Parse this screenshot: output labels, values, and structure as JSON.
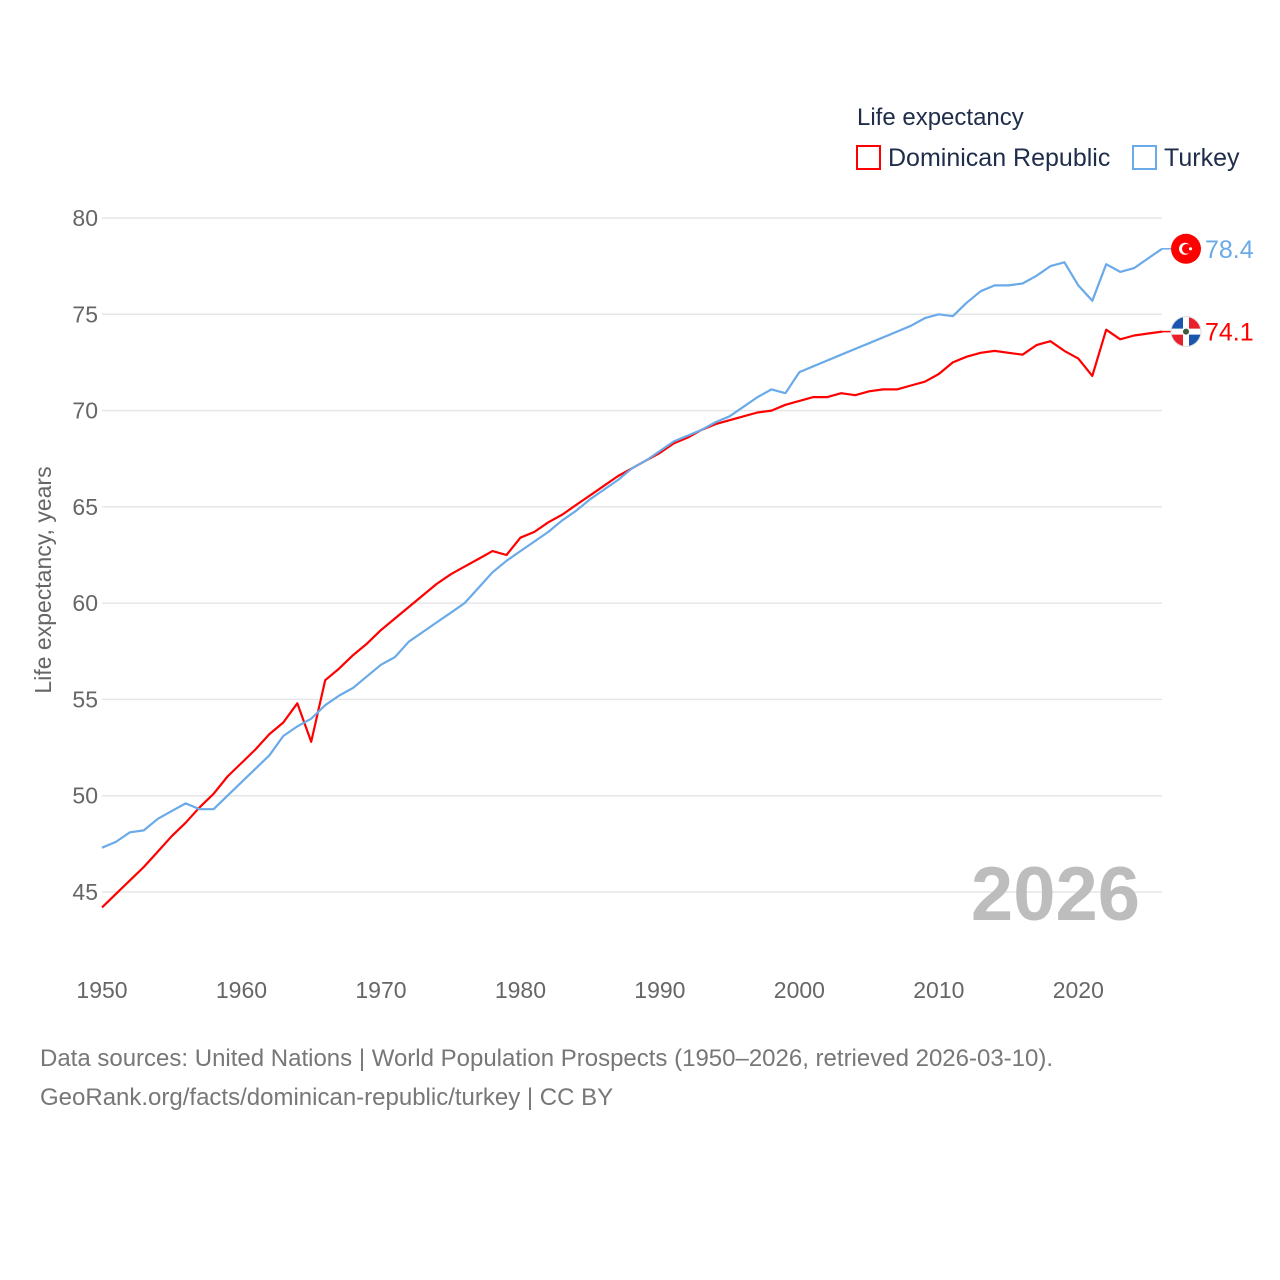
{
  "chart_data": {
    "type": "line",
    "title": "Life expectancy",
    "xlabel": "",
    "ylabel": "Life expectancy, years",
    "xlim": [
      1950,
      2026
    ],
    "ylim": [
      45,
      80
    ],
    "grid": true,
    "legend_placement": "top-right",
    "x_ticks": [
      "1950",
      "1960",
      "1970",
      "1980",
      "1990",
      "2000",
      "2010",
      "2020"
    ],
    "y_ticks": [
      "45",
      "50",
      "55",
      "60",
      "65",
      "70",
      "75",
      "80"
    ],
    "year_watermark": "2026",
    "x": [
      1950,
      1951,
      1952,
      1953,
      1954,
      1955,
      1956,
      1957,
      1958,
      1959,
      1960,
      1961,
      1962,
      1963,
      1964,
      1965,
      1966,
      1967,
      1968,
      1969,
      1970,
      1971,
      1972,
      1973,
      1974,
      1975,
      1976,
      1977,
      1978,
      1979,
      1980,
      1981,
      1982,
      1983,
      1984,
      1985,
      1986,
      1987,
      1988,
      1989,
      1990,
      1991,
      1992,
      1993,
      1994,
      1995,
      1996,
      1997,
      1998,
      1999,
      2000,
      2001,
      2002,
      2003,
      2004,
      2005,
      2006,
      2007,
      2008,
      2009,
      2010,
      2011,
      2012,
      2013,
      2014,
      2015,
      2016,
      2017,
      2018,
      2019,
      2020,
      2021,
      2022,
      2023,
      2024,
      2025,
      2026
    ],
    "series": [
      {
        "name": "Dominican Republic",
        "color": "#ff0000",
        "end_label": "74.1",
        "flag": "dominican-republic-flag",
        "values": [
          44.2,
          44.9,
          45.6,
          46.3,
          47.1,
          47.9,
          48.6,
          49.4,
          50.1,
          51.0,
          51.7,
          52.4,
          53.2,
          53.8,
          54.8,
          52.8,
          56.0,
          56.6,
          57.3,
          57.9,
          58.6,
          59.2,
          59.8,
          60.4,
          61.0,
          61.5,
          61.9,
          62.3,
          62.7,
          62.5,
          63.4,
          63.7,
          64.2,
          64.6,
          65.1,
          65.6,
          66.1,
          66.6,
          67.0,
          67.4,
          67.8,
          68.3,
          68.6,
          69.0,
          69.3,
          69.5,
          69.7,
          69.9,
          70.0,
          70.3,
          70.5,
          70.7,
          70.7,
          70.9,
          70.8,
          71.0,
          71.1,
          71.1,
          71.3,
          71.5,
          71.9,
          72.5,
          72.8,
          73.0,
          73.1,
          73.0,
          72.9,
          73.4,
          73.6,
          73.1,
          72.7,
          71.8,
          74.2,
          73.7,
          73.9,
          74.0,
          74.1
        ]
      },
      {
        "name": "Turkey",
        "color": "#6aaae8",
        "end_label": "78.4",
        "flag": "turkey-flag",
        "values": [
          47.3,
          47.6,
          48.1,
          48.2,
          48.8,
          49.2,
          49.6,
          49.3,
          49.3,
          50.0,
          50.7,
          51.4,
          52.1,
          53.1,
          53.6,
          54.0,
          54.7,
          55.2,
          55.6,
          56.2,
          56.8,
          57.2,
          58.0,
          58.5,
          59.0,
          59.5,
          60.0,
          60.8,
          61.6,
          62.2,
          62.7,
          63.2,
          63.7,
          64.3,
          64.8,
          65.4,
          65.9,
          66.4,
          67.0,
          67.4,
          67.9,
          68.4,
          68.7,
          69.0,
          69.4,
          69.7,
          70.2,
          70.7,
          71.1,
          70.9,
          72.0,
          72.3,
          72.6,
          72.9,
          73.2,
          73.5,
          73.8,
          74.1,
          74.4,
          74.8,
          75.0,
          74.9,
          75.6,
          76.2,
          76.5,
          76.5,
          76.6,
          77.0,
          77.5,
          77.7,
          76.5,
          75.7,
          77.6,
          77.2,
          77.4,
          77.9,
          78.4
        ]
      }
    ]
  },
  "footer": {
    "line1": "Data sources: United Nations | World Population Prospects (1950–2026, retrieved 2026-03-10).",
    "line2": "GeoRank.org/facts/dominican-republic/turkey | CC BY"
  }
}
